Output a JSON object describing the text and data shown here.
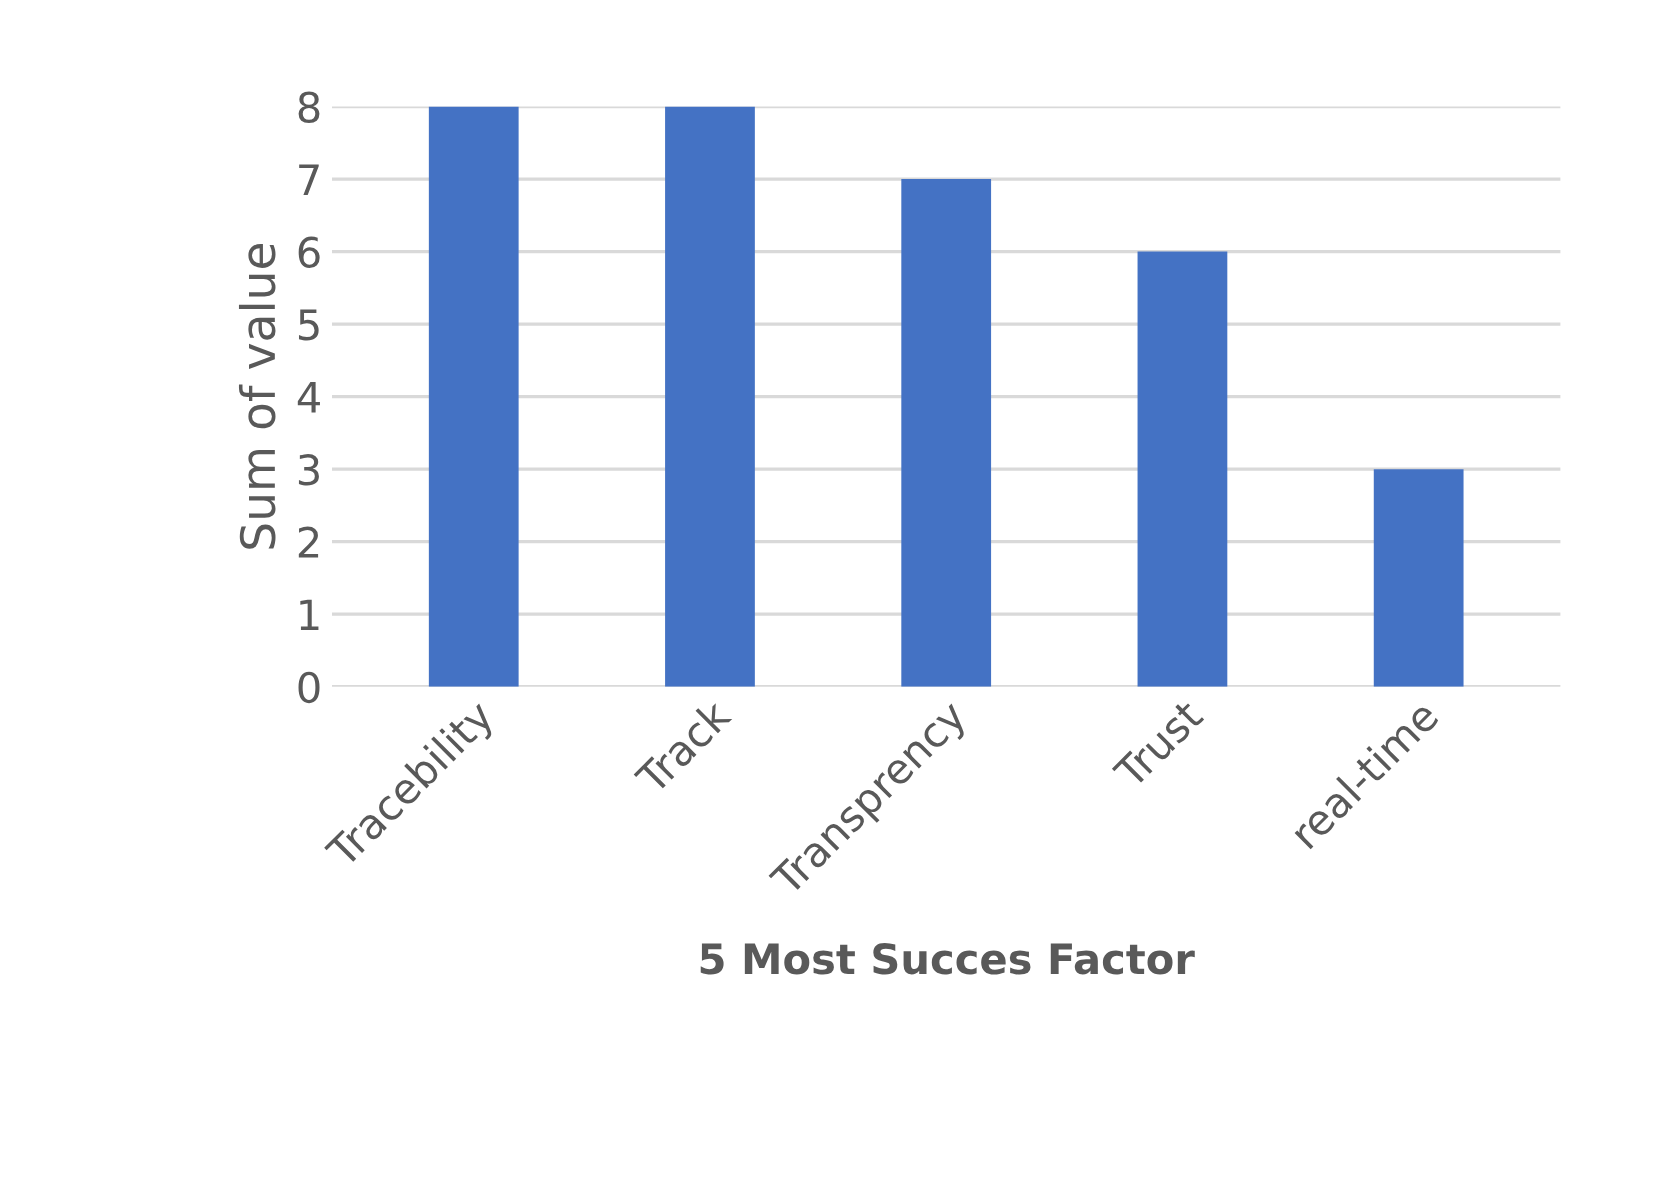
{
  "chart_data": {
    "type": "bar",
    "xlabel": "5 Most Succes Factor",
    "ylabel": "Sum of value",
    "categories": [
      "Tracebility",
      "Track",
      "Transprency",
      "Trust",
      "real-time"
    ],
    "values": [
      8,
      8,
      7,
      6,
      3
    ],
    "color": "#4472c4",
    "ylim": [
      0,
      8
    ],
    "yticks": [
      0,
      1,
      2,
      3,
      4,
      5,
      6,
      7,
      8
    ],
    "grid": "y"
  }
}
